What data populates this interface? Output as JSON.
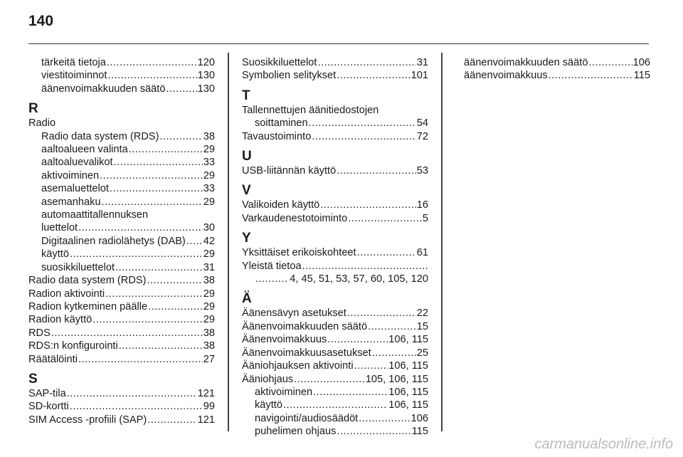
{
  "page_number": "140",
  "columns": [
    [
      {
        "t": "tärkeitä tietoja",
        "p": "120",
        "i": 1
      },
      {
        "t": "viestitoiminnot",
        "p": "130",
        "i": 1
      },
      {
        "t": "äänenvoimakkuuden säätö",
        "p": "130",
        "i": 1
      },
      {
        "h": "R"
      },
      {
        "t": "Radio",
        "i": 0
      },
      {
        "t": "Radio data system (RDS)",
        "p": "38",
        "i": 1
      },
      {
        "t": "aaltoalueen valinta",
        "p": "29",
        "i": 1
      },
      {
        "t": "aaltoaluevalikot",
        "p": "33",
        "i": 1
      },
      {
        "t": "aktivoiminen",
        "p": "29",
        "i": 1
      },
      {
        "t": "asemaluettelot",
        "p": "33",
        "i": 1
      },
      {
        "t": "asemanhaku",
        "p": "29",
        "i": 1
      },
      {
        "t": "automaattitallennuksen",
        "i": 1
      },
      {
        "t": "luettelot",
        "p": "30",
        "i": 1
      },
      {
        "t": "Digitaalinen radiolähetys (DAB)",
        "p": "42",
        "i": 1
      },
      {
        "t": "käyttö",
        "p": "29",
        "i": 1
      },
      {
        "t": "suosikkiluettelot",
        "p": "31",
        "i": 1
      },
      {
        "t": "Radio data system (RDS)",
        "p": "38",
        "i": 0
      },
      {
        "t": "Radion aktivointi",
        "p": "29",
        "i": 0
      },
      {
        "t": "Radion kytkeminen päälle",
        "p": "29",
        "i": 0
      },
      {
        "t": "Radion käyttö",
        "p": "29",
        "i": 0
      },
      {
        "t": "RDS",
        "p": "38",
        "i": 0
      },
      {
        "t": "RDS:n konfigurointi",
        "p": "38",
        "i": 0
      },
      {
        "t": "Räätälöinti",
        "p": "27",
        "i": 0
      },
      {
        "h": "S"
      },
      {
        "t": "SAP-tila",
        "p": "121",
        "i": 0
      },
      {
        "t": "SD-kortti",
        "p": "99",
        "i": 0
      },
      {
        "t": "SIM Access -profiili (SAP)",
        "p": "121",
        "i": 0
      }
    ],
    [
      {
        "t": "Suosikkiluettelot",
        "p": "31",
        "i": 0
      },
      {
        "t": "Symbolien selitykset",
        "p": "101",
        "i": 0
      },
      {
        "h": "T"
      },
      {
        "t": "Tallennettujen äänitiedostojen",
        "i": 0
      },
      {
        "t": "soittaminen",
        "p": "54",
        "i": 2
      },
      {
        "t": "Tavaustoiminto",
        "p": "72",
        "i": 0
      },
      {
        "h": "U"
      },
      {
        "t": "USB-liitännän käyttö",
        "p": "53",
        "i": 0
      },
      {
        "h": "V"
      },
      {
        "t": "Valikoiden käyttö",
        "p": "16",
        "i": 0
      },
      {
        "t": "Varkaudenestotoiminto",
        "p": "5",
        "i": 0
      },
      {
        "h": "Y"
      },
      {
        "t": "Yksittäiset erikoiskohteet",
        "p": "61",
        "i": 0
      },
      {
        "t": "Yleistä tietoa",
        "p": "",
        "i": 0
      },
      {
        "t": "",
        "p": "4, 45, 51, 53, 57, 60, 105, 120",
        "i": 2
      },
      {
        "h": "Ä"
      },
      {
        "t": "Äänensävyn asetukset",
        "p": "22",
        "i": 0
      },
      {
        "t": "Äänenvoimakkuuden säätö",
        "p": "15",
        "i": 0
      },
      {
        "t": "Äänenvoimakkuus",
        "p": "106, 115",
        "i": 0
      },
      {
        "t": "Äänenvoimakkuusasetukset",
        "p": "25",
        "i": 0
      },
      {
        "t": "Ääniohjauksen aktivointi",
        "p": "106, 115",
        "i": 0
      },
      {
        "t": "Ääniohjaus",
        "p": "105, 106, 115",
        "i": 0
      },
      {
        "t": "aktivoiminen",
        "p": "106, 115",
        "i": 1
      },
      {
        "t": "käyttö",
        "p": "106, 115",
        "i": 1
      },
      {
        "t": "navigointi/audiosäädöt",
        "p": "106",
        "i": 1
      },
      {
        "t": "puhelimen ohjaus",
        "p": "115",
        "i": 1
      }
    ],
    [
      {
        "t": "äänenvoimakkuuden säätö",
        "p": "106",
        "i": 0
      },
      {
        "t": "äänenvoimakkuus",
        "p": "115",
        "i": 0
      }
    ]
  ],
  "watermark": "carmanualsonline.info"
}
